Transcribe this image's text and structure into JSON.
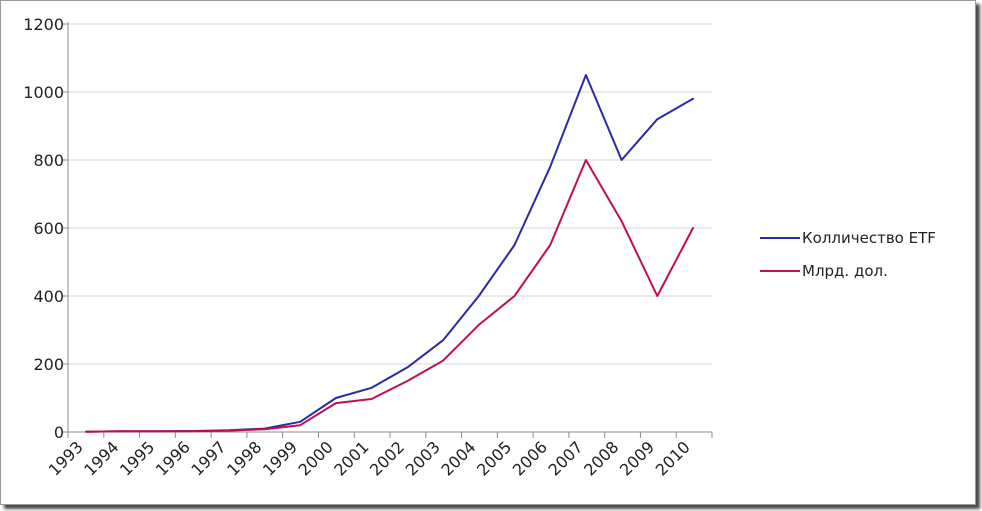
{
  "chart_data": {
    "type": "line",
    "x": [
      "1993",
      "1994",
      "1995",
      "1996",
      "1997",
      "1998",
      "1999",
      "2000",
      "2001",
      "2002",
      "2003",
      "2004",
      "2005",
      "2006",
      "2007",
      "2008",
      "2009",
      "2010"
    ],
    "series": [
      {
        "name": "Колличество ETF",
        "color": "#2a2aa8",
        "values": [
          1,
          2,
          2,
          3,
          5,
          10,
          30,
          100,
          130,
          190,
          270,
          400,
          550,
          780,
          1050,
          800,
          920,
          980
        ]
      },
      {
        "name": "Млрд. дол.",
        "color": "#c0104a",
        "values": [
          1,
          2,
          2,
          2,
          4,
          8,
          20,
          85,
          97,
          150,
          210,
          315,
          400,
          550,
          800,
          620,
          400,
          600
        ]
      }
    ],
    "ylim": [
      0,
      1200
    ],
    "yticks": [
      "0",
      "200",
      "400",
      "600",
      "800",
      "1000",
      "1200"
    ],
    "grid": "horizontal",
    "legend_position": "right",
    "title": "",
    "xlabel": "",
    "ylabel": ""
  }
}
